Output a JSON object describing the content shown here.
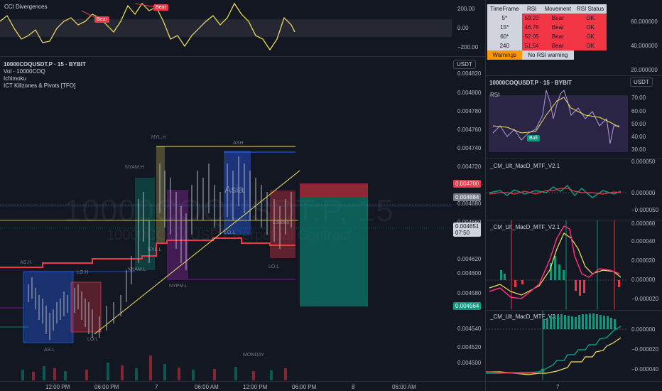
{
  "left_chart": {
    "cci_title": "CCI Divergences",
    "cci_axis": [
      "200.00",
      "0.00",
      "−200.00"
    ],
    "cci_tags": [
      "Bear",
      "Bear"
    ],
    "symbol_line": "10000COQUSDT.P · 15 · BYBIT",
    "indicators": [
      "Vol · 10000COQ",
      "Ichimoku",
      "ICT Killzones & Pivots [TFO]"
    ],
    "watermark_big": "10000COQUSDT.P, 15",
    "watermark_small": "10000COQ / USDT Perpetual Contract",
    "currency": "USDT",
    "price_axis": [
      "0.004820",
      "0.004800",
      "0.004780",
      "0.004760",
      "0.004740",
      "0.004720",
      "0.004680",
      "0.004660",
      "0.004620",
      "0.004600",
      "0.004580",
      "0.004540",
      "0.004520",
      "0.004500"
    ],
    "tag_red": "0.004700",
    "tag_grey": "0.004684",
    "tag_current": "0.004651",
    "tag_countdown": "07:50",
    "tag_green": "0.004564",
    "time_axis": [
      "12:00 PM",
      "06:00 PM",
      "7",
      "06:00 AM",
      "12:00 PM",
      "06:00 PM",
      "8",
      "06:00 AM"
    ],
    "zone_labels": [
      "NYL.H",
      "ASH",
      "NYAM.H",
      "Asia",
      "LO.H",
      "AS.L",
      "LO.L",
      "NYL.L",
      "NYPM.L",
      "NYAM.L",
      "LO.L",
      "MONDAY",
      "London",
      "LO.L",
      "AS.H"
    ]
  },
  "rsi_table": {
    "headers": [
      "TimeFrame",
      "RSI",
      "Movement",
      "RSI Status"
    ],
    "rows": [
      {
        "tf": "5*",
        "rsi": "59.23",
        "move": "Bear",
        "status": "OK"
      },
      {
        "tf": "15*",
        "rsi": "46.76",
        "move": "Bear",
        "status": "OK"
      },
      {
        "tf": "60*",
        "rsi": "52.05",
        "move": "Bear",
        "status": "OK"
      },
      {
        "tf": "240",
        "rsi": "51.54",
        "move": "Bear",
        "status": "OK"
      }
    ],
    "warnings_label": "Warnings",
    "warnings_value": "No RSI warning",
    "row_color": "#f23645"
  },
  "right_chart": {
    "top_axis": [
      "60.000000",
      "40.000000",
      "20.000000"
    ],
    "symbol_line": "10000COQUSDT.P · 15 · BYBIT",
    "currency": "USDT",
    "rsi_label": "RSI",
    "rsi_axis": [
      "70.00",
      "60.00",
      "50.00",
      "40.00",
      "30.00"
    ],
    "bull_tag": "Bull",
    "macd1_title": "_CM_Ult_MacD_MTF_V2.1",
    "macd1_axis": [
      "0.000050",
      "0.000000",
      "−0.000050"
    ],
    "macd2_title": "_CM_Ult_MacD_MTF_V2.1",
    "macd2_axis": [
      "0.000060",
      "0.000040",
      "0.000020",
      "0.000000",
      "−0.000020"
    ],
    "macd3_title": "_CM_Ult_MacD_MTF_V2.1",
    "macd3_axis": [
      "0.000000",
      "−0.000020",
      "−0.000040"
    ],
    "time_label": "7"
  },
  "colors": {
    "bg": "#131722",
    "red": "#f23645",
    "green": "#089981",
    "yellow": "#f7e35b",
    "blue": "#2962ff",
    "purple": "#9c27b0",
    "orange": "#ff9800"
  }
}
